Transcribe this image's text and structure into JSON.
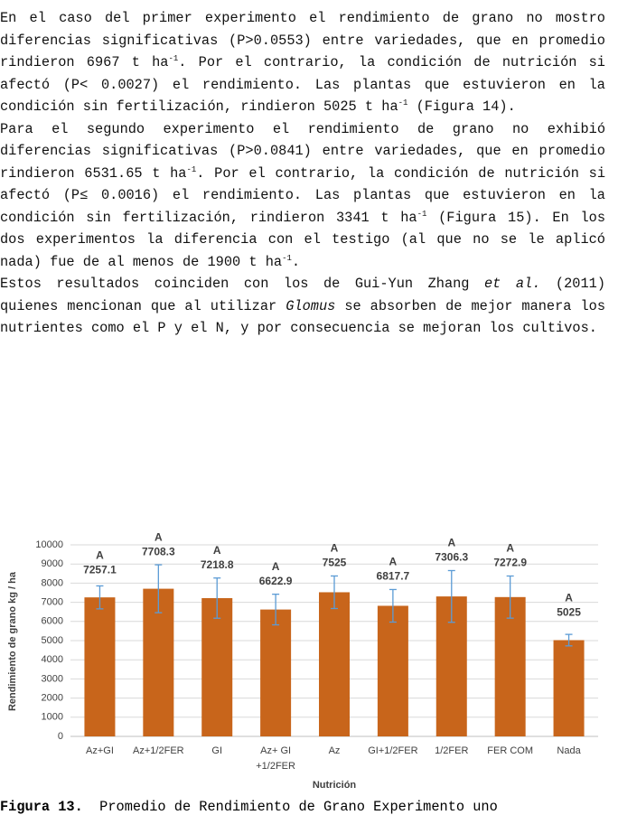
{
  "text": {
    "paragraphs": [
      [
        "En el caso del primer experimento el rendimiento de grano no mostro diferencias significativas (P>0.0553) entre variedades, que en promedio rindieron 6967 t ha",
        "-1",
        ". Por el contrario, la condición de nutrición si afectó (P< 0.0027) el rendimiento. Las plantas que estuvieron en la condición sin fertilización, rindieron 5025 t ha",
        "-1",
        " (Figura 14)."
      ],
      [
        "Para el segundo experimento el rendimiento de grano no exhibió diferencias significativas (P>0.0841) entre variedades, que en promedio rindieron 6531.65 t ha",
        "-1",
        ". Por el contrario, la condición de nutrición si afectó (P≤ 0.0016) el rendimiento. Las plantas que estuvieron en la condición sin fertilización, rindieron 3341 t ha",
        "-1",
        " (Figura 15). En los dos experimentos la diferencia con el testigo (al que no se le aplicó nada) fue de al menos de 1900 t ha",
        "-1",
        "."
      ],
      [
        "Estos resultados coinciden con los de Gui-Yun Zhang ",
        "et al.",
        " (2011) quienes mencionan que al utilizar ",
        "Glomus",
        " se absorben de mejor manera los nutrientes como el P y el N, y por consecuencia se mejoran los cultivos."
      ]
    ]
  },
  "chart_data": {
    "type": "bar",
    "x_label": "Nutrición",
    "y_label": "Rendimiento de grano kg / ha",
    "categories": [
      [
        "Az+GI"
      ],
      [
        "Az+1/2FER"
      ],
      [
        "GI"
      ],
      [
        "Az+ GI",
        "+1/2FER"
      ],
      [
        "Az"
      ],
      [
        "GI+1/2FER"
      ],
      [
        "1/2FER"
      ],
      [
        "FER COM"
      ],
      [
        "Nada"
      ]
    ],
    "values": [
      7257.1,
      7708.3,
      7218.8,
      6622.9,
      7525,
      6817.7,
      7306.3,
      7272.9,
      5025
    ],
    "errors": [
      600,
      1250,
      1050,
      800,
      850,
      850,
      1350,
      1100,
      300
    ],
    "group_labels": [
      "A",
      "A",
      "A",
      "A",
      "A",
      "A",
      "A",
      "A",
      "A"
    ],
    "color": "#c8651b",
    "error_color": "#5b9bd5",
    "ylim": [
      0,
      10000
    ],
    "yticks": [
      0,
      1000,
      2000,
      3000,
      4000,
      5000,
      6000,
      7000,
      8000,
      9000,
      10000
    ],
    "grid": true
  },
  "caption": [
    "Figura 13.",
    "  Promedio de Rendimiento de Grano Experimento uno"
  ]
}
